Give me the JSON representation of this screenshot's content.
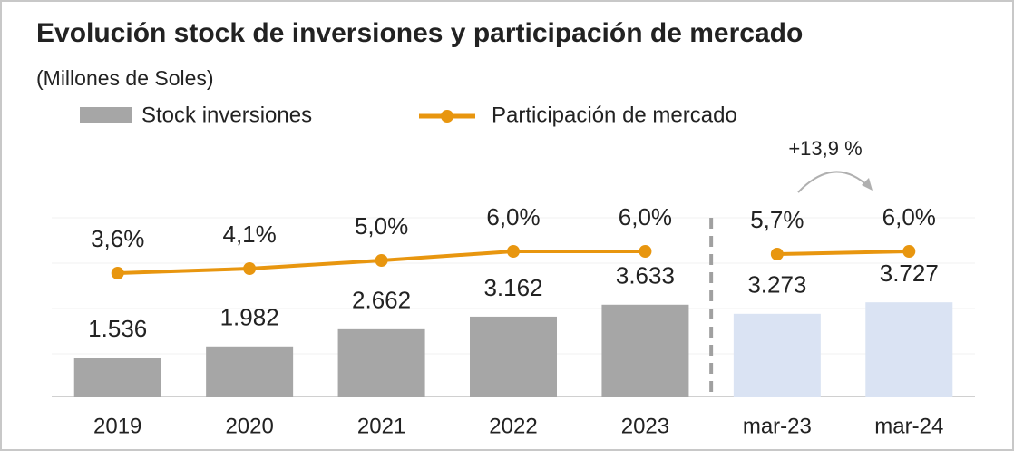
{
  "chart_data": {
    "type": "bar_line",
    "title": "Evolución stock de inversiones y participación de mercado",
    "subtitle": "(Millones de Soles)",
    "categories": [
      "2019",
      "2020",
      "2021",
      "2022",
      "2023",
      "mar-23",
      "mar-24"
    ],
    "series": [
      {
        "name": "Stock inversiones",
        "type": "bar",
        "color": "#a6a6a6",
        "colors": [
          "#a6a6a6",
          "#a6a6a6",
          "#a6a6a6",
          "#a6a6a6",
          "#a6a6a6",
          "#dae3f3",
          "#dae3f3"
        ],
        "values": [
          1536,
          1982,
          2662,
          3162,
          3633,
          3273,
          3727
        ],
        "value_labels": [
          "1.536",
          "1.982",
          "2.662",
          "3.162",
          "3.633",
          "3.273",
          "3.727"
        ]
      },
      {
        "name": "Participación de mercado",
        "type": "line",
        "axis": "y2",
        "color": "#e8960f",
        "values": [
          3.6,
          4.1,
          5.0,
          6.0,
          6.0,
          5.7,
          6.0
        ],
        "value_labels": [
          "3,6%",
          "4,1%",
          "5,0%",
          "6,0%",
          "6,0%",
          "5,7%",
          "6,0%"
        ]
      }
    ],
    "ylim": [
      0,
      7000
    ],
    "y2lim": [
      -10,
      9.5
    ],
    "annotation": "+13,9 %"
  }
}
